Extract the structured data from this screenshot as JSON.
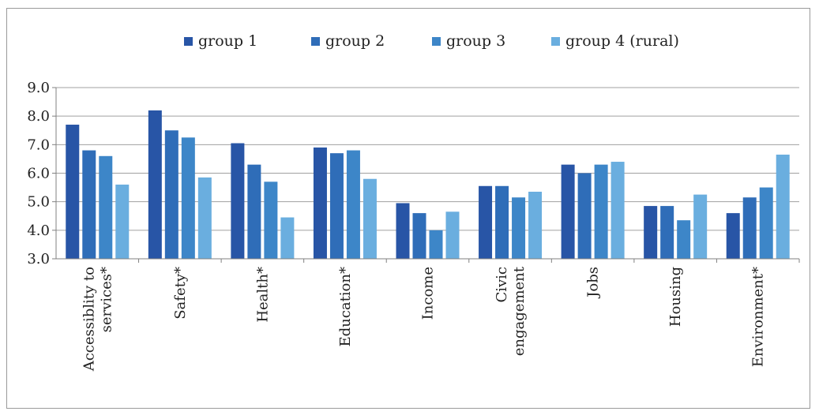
{
  "chart_data": {
    "type": "bar",
    "title": "",
    "xlabel": "",
    "ylabel": "",
    "ylim": [
      3.0,
      9.0
    ],
    "yticks": [
      "3.0",
      "4.0",
      "5.0",
      "6.0",
      "7.0",
      "8.0",
      "9.0"
    ],
    "grid": true,
    "legend_position": "top-center",
    "categories": [
      [
        "Accessiblity to",
        "services*"
      ],
      [
        "Safety*"
      ],
      [
        "Health*"
      ],
      [
        "Education*"
      ],
      [
        "Income"
      ],
      [
        "Civic",
        "engagement"
      ],
      [
        "Jobs"
      ],
      [
        "Housing"
      ],
      [
        "Environment*"
      ]
    ],
    "series": [
      {
        "name": "group 1",
        "color": "#2855a6",
        "values": [
          7.7,
          8.2,
          7.05,
          6.9,
          4.95,
          5.55,
          6.3,
          4.85,
          4.6
        ]
      },
      {
        "name": "group 2",
        "color": "#2f6db8",
        "values": [
          6.8,
          7.5,
          6.3,
          6.7,
          4.6,
          5.55,
          6.0,
          4.85,
          5.15
        ]
      },
      {
        "name": "group 3",
        "color": "#3d86c8",
        "values": [
          6.6,
          7.25,
          5.7,
          6.8,
          4.0,
          5.15,
          6.3,
          4.35,
          5.5
        ]
      },
      {
        "name": "group 4 (rural)",
        "color": "#6aaedf",
        "values": [
          5.6,
          5.85,
          4.45,
          5.8,
          4.65,
          5.35,
          6.4,
          5.25,
          6.65
        ]
      }
    ]
  }
}
